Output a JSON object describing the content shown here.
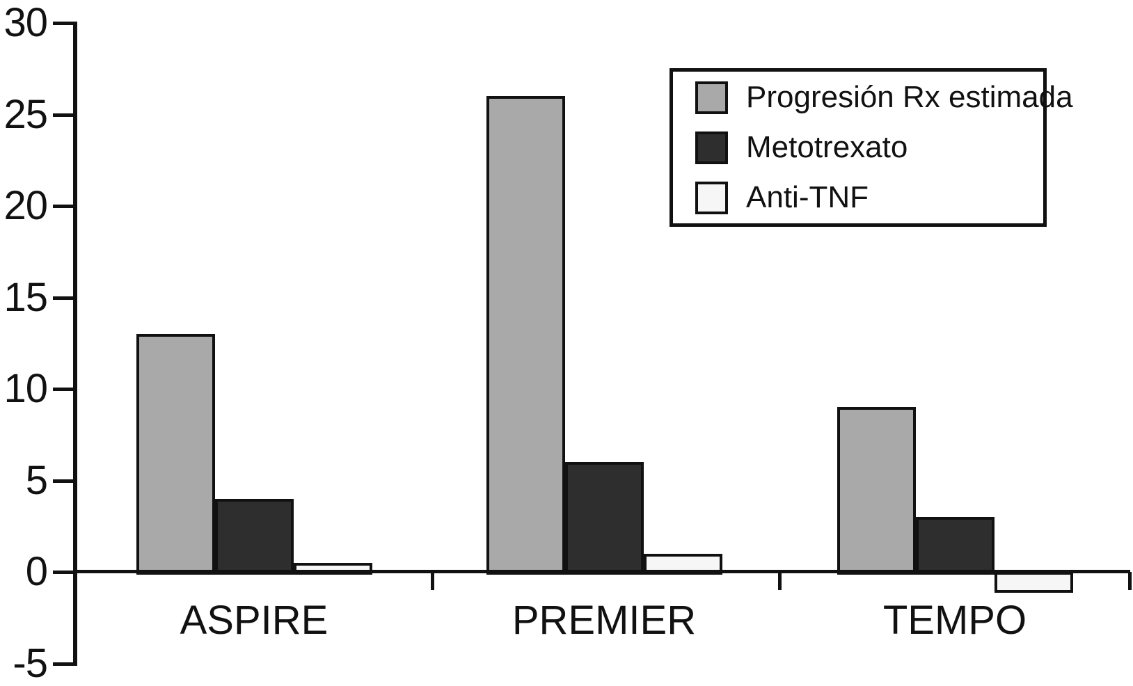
{
  "chart_data": {
    "type": "bar",
    "title": "",
    "xlabel": "",
    "ylabel": "",
    "categories": [
      "ASPIRE",
      "PREMIER",
      "TEMPO"
    ],
    "series": [
      {
        "name": "Progresión Rx estimada",
        "color": "#a9a9a9",
        "values": [
          13,
          26,
          9
        ]
      },
      {
        "name": "Metotrexato",
        "color": "#2e2e2e",
        "values": [
          4,
          6,
          3
        ]
      },
      {
        "name": "Anti-TNF",
        "color": "#f6f6f6",
        "values": [
          0.5,
          1,
          -1
        ]
      }
    ],
    "ylim": [
      -5,
      30
    ],
    "yticks": [
      30,
      25,
      20,
      15,
      10,
      5,
      0,
      -5
    ],
    "grid": false,
    "legend_position": "top-right",
    "axis_color": "#111111",
    "background": "#ffffff"
  }
}
